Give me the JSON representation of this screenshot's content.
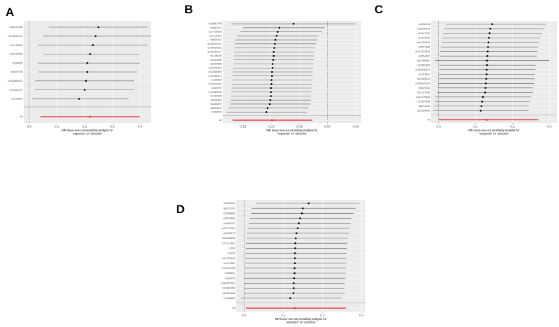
{
  "panels": [
    {
      "letter": "A",
      "chart_data": {
        "type": "scatter",
        "title": "",
        "xlabel": "MR leave-one-out sensitivity analysis for 'exposure' on 'outcome'",
        "ylabel": "",
        "xlim": [
          -0.02,
          0.44
        ],
        "xticks": [
          0.0,
          0.1,
          0.2,
          0.3,
          0.4
        ],
        "xtick_labels": [
          "0.0",
          "0.1",
          "0.2",
          "0.3",
          "0.4"
        ],
        "points": [
          {
            "label": "rs56137558",
            "x": 0.25,
            "lo": 0.07,
            "hi": 0.43
          },
          {
            "label": "rs143513074",
            "x": 0.24,
            "lo": 0.05,
            "hi": 0.44
          },
          {
            "label": "rs74719606",
            "x": 0.23,
            "lo": 0.03,
            "hi": 0.43
          },
          {
            "label": "rs41272625",
            "x": 0.22,
            "lo": 0.05,
            "hi": 0.4
          },
          {
            "label": "rs296805",
            "x": 0.21,
            "lo": 0.03,
            "hi": 0.4
          },
          {
            "label": "rs6579709",
            "x": 0.21,
            "lo": 0.03,
            "hi": 0.39
          },
          {
            "label": "rs180856401",
            "x": 0.205,
            "lo": 0.02,
            "hi": 0.38
          },
          {
            "label": "rs17832107",
            "x": 0.2,
            "lo": 0.02,
            "hi": 0.38
          },
          {
            "label": "rs9108602",
            "x": 0.18,
            "lo": 0.01,
            "hi": 0.36
          }
        ],
        "all": {
          "label": "All",
          "x": 0.22,
          "lo": 0.04,
          "hi": 0.4
        },
        "grid": true
      }
    },
    {
      "letter": "B",
      "chart_data": {
        "type": "scatter",
        "title": "",
        "xlabel": "MR leave-one-out sensitivity analysis for 'exposure' on 'outcome'",
        "ylabel": "",
        "xlim": [
          -0.185,
          0.06
        ],
        "xticks": [
          -0.15,
          -0.1,
          -0.05,
          0.0,
          0.05
        ],
        "xtick_labels": [
          "-0.15",
          "-0.10",
          "-0.05",
          "0.00",
          "0.05"
        ],
        "points": [
          {
            "label": "rs10842795",
            "x": -0.06,
            "lo": -0.17,
            "hi": 0.05
          },
          {
            "label": "rs9819373",
            "x": -0.085,
            "lo": -0.15,
            "hi": -0.005
          },
          {
            "label": "rs17755069",
            "x": -0.088,
            "lo": -0.155,
            "hi": -0.01
          },
          {
            "label": "rs11109218",
            "x": -0.09,
            "lo": -0.16,
            "hi": -0.015
          },
          {
            "label": "rs9826767",
            "x": -0.092,
            "lo": -0.163,
            "hi": -0.018
          },
          {
            "label": "rs144692787",
            "x": -0.093,
            "lo": -0.164,
            "hi": -0.02
          },
          {
            "label": "rs149993602",
            "x": -0.094,
            "lo": -0.165,
            "hi": -0.022
          },
          {
            "label": "rs144945277",
            "x": -0.095,
            "lo": -0.165,
            "hi": -0.023
          },
          {
            "label": "rs1395090",
            "x": -0.095,
            "lo": -0.166,
            "hi": -0.023
          },
          {
            "label": "rs9315496",
            "x": -0.096,
            "lo": -0.166,
            "hi": -0.024
          },
          {
            "label": "rs8750665",
            "x": -0.097,
            "lo": -0.167,
            "hi": -0.025
          },
          {
            "label": "rs78700127",
            "x": -0.097,
            "lo": -0.167,
            "hi": -0.025
          },
          {
            "label": "rs12566999",
            "x": -0.098,
            "lo": -0.168,
            "hi": -0.026
          },
          {
            "label": "rs72965971",
            "x": -0.098,
            "lo": -0.168,
            "hi": -0.026
          },
          {
            "label": "rs336598",
            "x": -0.099,
            "lo": -0.169,
            "hi": -0.027
          },
          {
            "label": "rs77002761",
            "x": -0.099,
            "lo": -0.169,
            "hi": -0.027
          },
          {
            "label": "rs516570",
            "x": -0.1,
            "lo": -0.17,
            "hi": -0.028
          },
          {
            "label": "rs72816009",
            "x": -0.1,
            "lo": -0.17,
            "hi": -0.028
          },
          {
            "label": "rs1925180",
            "x": -0.1,
            "lo": -0.17,
            "hi": -0.029
          },
          {
            "label": "rs9995452",
            "x": -0.101,
            "lo": -0.171,
            "hi": -0.029
          },
          {
            "label": "rs1863897",
            "x": -0.102,
            "lo": -0.172,
            "hi": -0.03
          },
          {
            "label": "rs6682001",
            "x": -0.106,
            "lo": -0.176,
            "hi": -0.034
          },
          {
            "label": "rs783678",
            "x": -0.108,
            "lo": -0.178,
            "hi": -0.036
          }
        ],
        "all": {
          "label": "All",
          "x": -0.098,
          "lo": -0.168,
          "hi": -0.027
        },
        "grid": true
      }
    },
    {
      "letter": "C",
      "chart_data": {
        "type": "scatter",
        "title": "",
        "xlabel": "MR leave-one-out sensitivity analysis for 'exposure' on 'outcome'",
        "ylabel": "",
        "xlim": [
          -0.02,
          0.32
        ],
        "xticks": [
          0.0,
          0.1,
          0.2,
          0.3
        ],
        "xtick_labels": [
          "0.0",
          "0.1",
          "0.2",
          "0.3"
        ],
        "points": [
          {
            "label": "rs3808136",
            "x": 0.145,
            "lo": 0.02,
            "hi": 0.29
          },
          {
            "label": "rs34006778",
            "x": 0.14,
            "lo": 0.015,
            "hi": 0.285
          },
          {
            "label": "rs76143752",
            "x": 0.138,
            "lo": 0.012,
            "hi": 0.28
          },
          {
            "label": "rs1404218",
            "x": 0.136,
            "lo": 0.01,
            "hi": 0.275
          },
          {
            "label": "rs11020961",
            "x": 0.135,
            "lo": 0.008,
            "hi": 0.272
          },
          {
            "label": "rs6573486",
            "x": 0.134,
            "lo": 0.006,
            "hi": 0.27
          },
          {
            "label": "rs147203436",
            "x": 0.133,
            "lo": 0.005,
            "hi": 0.268
          },
          {
            "label": "rs2564697",
            "x": 0.132,
            "lo": 0.004,
            "hi": 0.266
          },
          {
            "label": "rs11366480",
            "x": 0.131,
            "lo": -0.01,
            "hi": 0.3
          },
          {
            "label": "rs10883354",
            "x": 0.131,
            "lo": 0.003,
            "hi": 0.264
          },
          {
            "label": "rs146436216",
            "x": 0.13,
            "lo": 0.002,
            "hi": 0.262
          },
          {
            "label": "rs1974647",
            "x": 0.13,
            "lo": 0.001,
            "hi": 0.261
          },
          {
            "label": "rs10655115",
            "x": 0.129,
            "lo": 0.0,
            "hi": 0.26
          },
          {
            "label": "rs180924514",
            "x": 0.128,
            "lo": -0.001,
            "hi": 0.258
          },
          {
            "label": "rs6026262",
            "x": 0.127,
            "lo": -0.002,
            "hi": 0.256
          },
          {
            "label": "rs11222006",
            "x": 0.126,
            "lo": -0.003,
            "hi": 0.255
          },
          {
            "label": "rs114709628",
            "x": 0.12,
            "lo": -0.008,
            "hi": 0.25
          },
          {
            "label": "rs72897896",
            "x": 0.118,
            "lo": -0.01,
            "hi": 0.248
          },
          {
            "label": "rs8072034",
            "x": 0.116,
            "lo": -0.012,
            "hi": 0.245
          },
          {
            "label": "rs11266486",
            "x": 0.114,
            "lo": -0.014,
            "hi": 0.243
          }
        ],
        "all": {
          "label": "All",
          "x": 0.13,
          "lo": 0.0,
          "hi": 0.27
        },
        "grid": true
      }
    },
    {
      "letter": "D",
      "chart_data": {
        "type": "scatter",
        "title": "",
        "xlabel": "MR leave-one-out sensitivity analysis for 'exposure' on 'outcome'",
        "ylabel": "",
        "xlim": [
          -0.02,
          0.31
        ],
        "xticks": [
          0.0,
          0.1,
          0.2,
          0.3
        ],
        "xtick_labels": [
          "0.0",
          "0.1",
          "0.2",
          "0.3"
        ],
        "points": [
          {
            "label": "rs7564240",
            "x": 0.165,
            "lo": 0.03,
            "hi": 0.295
          },
          {
            "label": "rs6037975",
            "x": 0.15,
            "lo": 0.02,
            "hi": 0.285
          },
          {
            "label": "rs2568886",
            "x": 0.148,
            "lo": 0.018,
            "hi": 0.28
          },
          {
            "label": "rs4503863",
            "x": 0.143,
            "lo": 0.015,
            "hi": 0.275
          },
          {
            "label": "rs4800767",
            "x": 0.14,
            "lo": 0.012,
            "hi": 0.272
          },
          {
            "label": "rs59772289",
            "x": 0.137,
            "lo": 0.01,
            "hi": 0.27
          },
          {
            "label": "rs8005474",
            "x": 0.134,
            "lo": 0.008,
            "hi": 0.268
          },
          {
            "label": "rs62266864",
            "x": 0.132,
            "lo": 0.006,
            "hi": 0.265
          },
          {
            "label": "rs72727847",
            "x": 0.131,
            "lo": 0.005,
            "hi": 0.264
          },
          {
            "label": "rs764",
            "x": 0.131,
            "lo": 0.004,
            "hi": 0.263
          },
          {
            "label": "rs4760",
            "x": 0.13,
            "lo": 0.004,
            "hi": 0.262
          },
          {
            "label": "rs11225462",
            "x": 0.13,
            "lo": 0.003,
            "hi": 0.262
          },
          {
            "label": "rs1974860",
            "x": 0.13,
            "lo": 0.003,
            "hi": 0.261
          },
          {
            "label": "rs74607998",
            "x": 0.129,
            "lo": 0.002,
            "hi": 0.26
          },
          {
            "label": "rs355847",
            "x": 0.129,
            "lo": 0.002,
            "hi": 0.26
          },
          {
            "label": "rs104973",
            "x": 0.128,
            "lo": 0.001,
            "hi": 0.259
          },
          {
            "label": "rs144470510",
            "x": 0.127,
            "lo": 0.0,
            "hi": 0.258
          },
          {
            "label": "rs10883354",
            "x": 0.127,
            "lo": 0.0,
            "hi": 0.257
          },
          {
            "label": "rs10849866",
            "x": 0.126,
            "lo": -0.001,
            "hi": 0.256
          },
          {
            "label": "rs7408861",
            "x": 0.118,
            "lo": -0.008,
            "hi": 0.25
          }
        ],
        "all": {
          "label": "All",
          "x": 0.13,
          "lo": 0.005,
          "hi": 0.26
        },
        "grid": true
      }
    }
  ],
  "colors": {
    "panel_bg": "#ebebeb",
    "grid": "#ffffff",
    "whisker": "#555555",
    "point": "#000000",
    "all_line": "#e8212a",
    "zero_line": "#333333",
    "sep_line": "#888888"
  }
}
